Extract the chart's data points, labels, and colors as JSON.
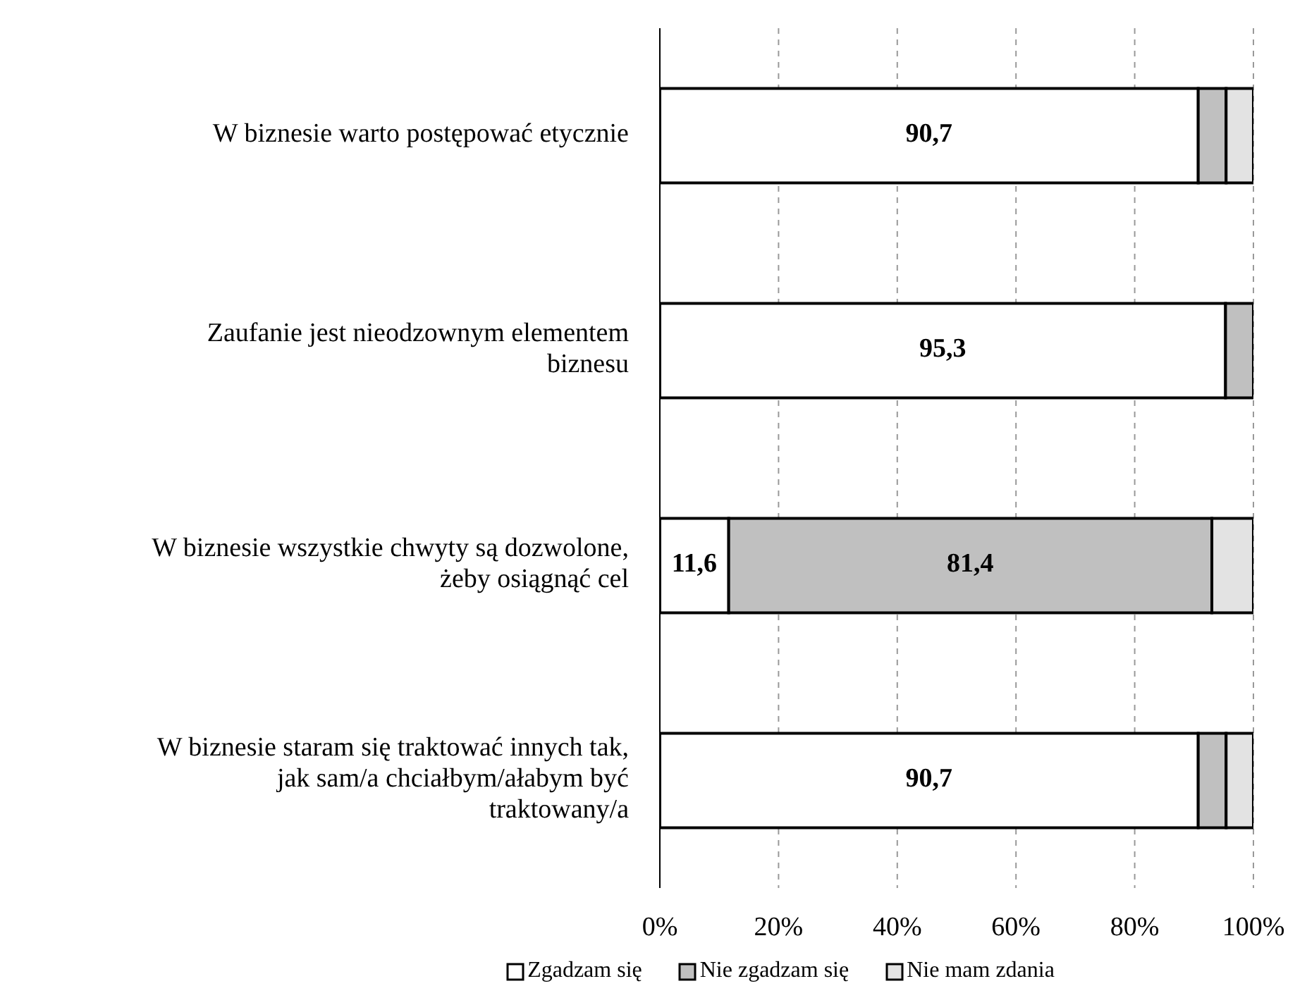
{
  "chart_data": {
    "type": "bar",
    "orientation": "horizontal",
    "stacked": true,
    "categories": [
      "W biznesie warto postępować etycznie",
      "Zaufanie jest nieodzownym elementem biznesu",
      "W biznesie wszystkie chwyty są dozwolone, żeby osiągnąć cel",
      "W biznesie staram się traktować innych tak, jak sam/a chciałbym/ałabym być traktowany/a"
    ],
    "series": [
      {
        "name": "Zgadzam się",
        "color": "#ffffff",
        "values": [
          90.7,
          95.3,
          11.6,
          90.7
        ],
        "value_labels": [
          "90,7",
          "95,3",
          "11,6",
          "90,7"
        ]
      },
      {
        "name": "Nie zgadzam się",
        "color": "#c0c0c0",
        "values": [
          4.7,
          4.7,
          81.4,
          4.7
        ],
        "value_labels": [
          null,
          null,
          "81,4",
          null
        ]
      },
      {
        "name": "Nie mam zdania",
        "color": "#e3e3e3",
        "values": [
          4.6,
          0,
          7.0,
          4.6
        ]
      }
    ],
    "xlim": [
      0,
      100
    ],
    "xticks": [
      {
        "value": 0,
        "label": "0%"
      },
      {
        "value": 20,
        "label": "20%"
      },
      {
        "value": 40,
        "label": "40%"
      },
      {
        "value": 60,
        "label": "60%"
      },
      {
        "value": 80,
        "label": "80%"
      },
      {
        "value": 100,
        "label": "100%"
      }
    ],
    "grid": "x",
    "legend": "bottom"
  }
}
